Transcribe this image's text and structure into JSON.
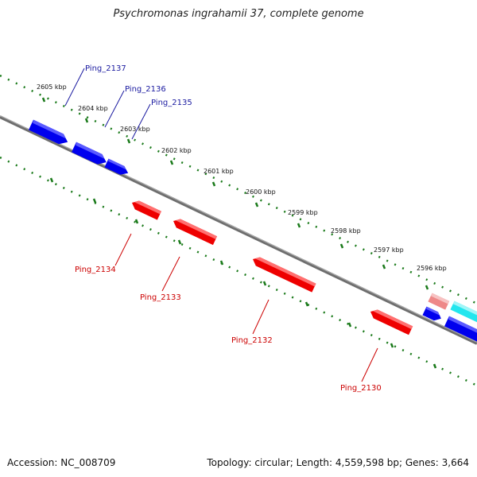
{
  "title": "Psychromonas ingrahamii 37, complete genome",
  "accession": "Accession: NC_008709",
  "topology": "Topology: circular; Length: 4,559,598 bp; Genes: 3,664",
  "colors": {
    "forward_gene": "#0000ee",
    "reverse_gene": "#ee0000",
    "forward_label": "#1a1aa0",
    "reverse_label": "#cc0000",
    "cyan_gene": "#22e6ee",
    "pink_gene": "#ee8888",
    "backbone": "#808080",
    "ruler": "#1a7a1a"
  },
  "scale_labels": [
    "2605 kbp",
    "2604 kbp",
    "2603 kbp",
    "2602 kbp",
    "2601 kbp",
    "2600 kbp",
    "2599 kbp",
    "2598 kbp",
    "2597 kbp",
    "2596 kbp"
  ],
  "forward_genes": [
    "Ping_2137",
    "Ping_2136",
    "Ping_2135"
  ],
  "reverse_genes": [
    "Ping_2134",
    "Ping_2133",
    "Ping_2132",
    "Ping_2130"
  ]
}
